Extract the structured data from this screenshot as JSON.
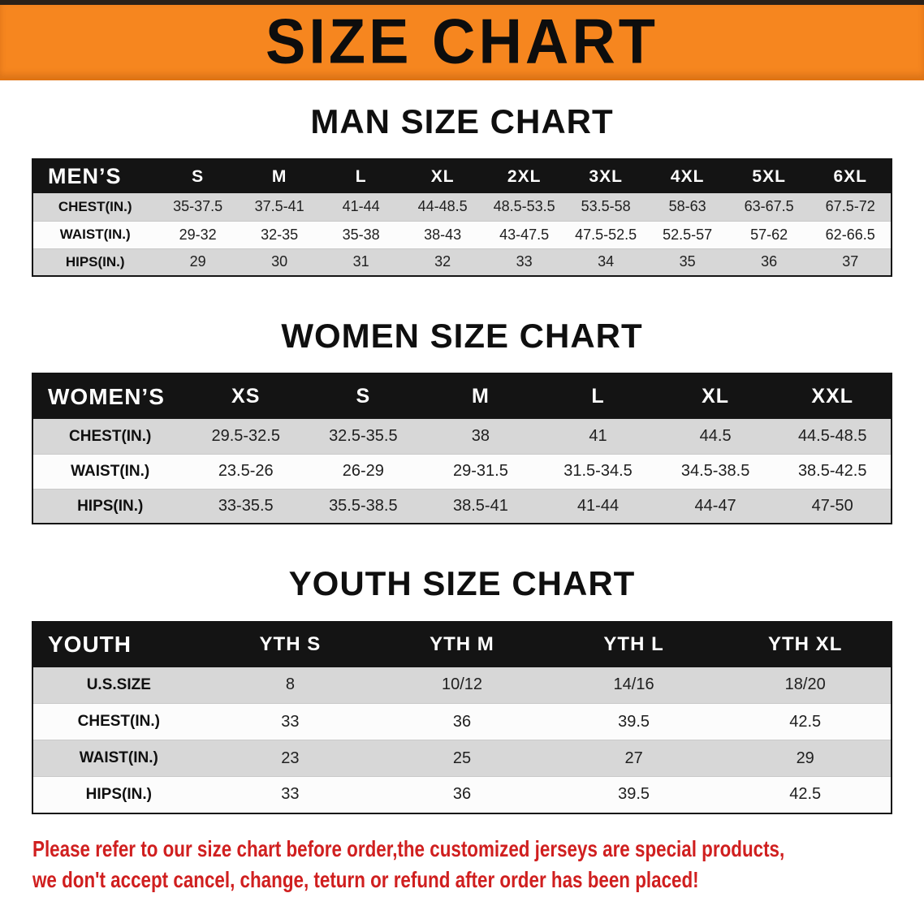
{
  "theme": {
    "banner_orange": "#f6861f",
    "header_black": "#141414",
    "row_gray": "#d7d7d7",
    "accent_red": "#d01f1f"
  },
  "banner": {
    "title": "SIZE CHART"
  },
  "sections": [
    {
      "key": "men",
      "heading": "MAN SIZE CHART",
      "table": {
        "corner_label": "MEN’S",
        "columns": [
          "S",
          "M",
          "L",
          "XL",
          "2XL",
          "3XL",
          "4XL",
          "5XL",
          "6XL"
        ],
        "rows": [
          {
            "label": "CHEST(IN.)",
            "values": [
              "35-37.5",
              "37.5-41",
              "41-44",
              "44-48.5",
              "48.5-53.5",
              "53.5-58",
              "58-63",
              "63-67.5",
              "67.5-72"
            ]
          },
          {
            "label": "WAIST(IN.)",
            "values": [
              "29-32",
              "32-35",
              "35-38",
              "38-43",
              "43-47.5",
              "47.5-52.5",
              "52.5-57",
              "57-62",
              "62-66.5"
            ]
          },
          {
            "label": "HIPS(IN.)",
            "values": [
              "29",
              "30",
              "31",
              "32",
              "33",
              "34",
              "35",
              "36",
              "37"
            ]
          }
        ]
      }
    },
    {
      "key": "women",
      "heading": "WOMEN SIZE CHART",
      "table": {
        "corner_label": "WOMEN’S",
        "columns": [
          "XS",
          "S",
          "M",
          "L",
          "XL",
          "XXL"
        ],
        "rows": [
          {
            "label": "CHEST(IN.)",
            "values": [
              "29.5-32.5",
              "32.5-35.5",
              "38",
              "41",
              "44.5",
              "44.5-48.5"
            ]
          },
          {
            "label": "WAIST(IN.)",
            "values": [
              "23.5-26",
              "26-29",
              "29-31.5",
              "31.5-34.5",
              "34.5-38.5",
              "38.5-42.5"
            ]
          },
          {
            "label": "HIPS(IN.)",
            "values": [
              "33-35.5",
              "35.5-38.5",
              "38.5-41",
              "41-44",
              "44-47",
              "47-50"
            ]
          }
        ]
      }
    },
    {
      "key": "youth",
      "heading": "YOUTH SIZE CHART",
      "table": {
        "corner_label": "YOUTH",
        "columns": [
          "YTH S",
          "YTH M",
          "YTH L",
          "YTH XL"
        ],
        "rows": [
          {
            "label": "U.S.SIZE",
            "values": [
              "8",
              "10/12",
              "14/16",
              "18/20"
            ]
          },
          {
            "label": "CHEST(IN.)",
            "values": [
              "33",
              "36",
              "39.5",
              "42.5"
            ]
          },
          {
            "label": "WAIST(IN.)",
            "values": [
              "23",
              "25",
              "27",
              "29"
            ]
          },
          {
            "label": "HIPS(IN.)",
            "values": [
              "33",
              "36",
              "39.5",
              "42.5"
            ]
          }
        ]
      }
    }
  ],
  "disclaimer": {
    "lines": [
      "Please refer to our size chart before order,the customized jerseys are special products,",
      "we don't accept cancel, change, teturn or refund after order has been placed!"
    ]
  }
}
